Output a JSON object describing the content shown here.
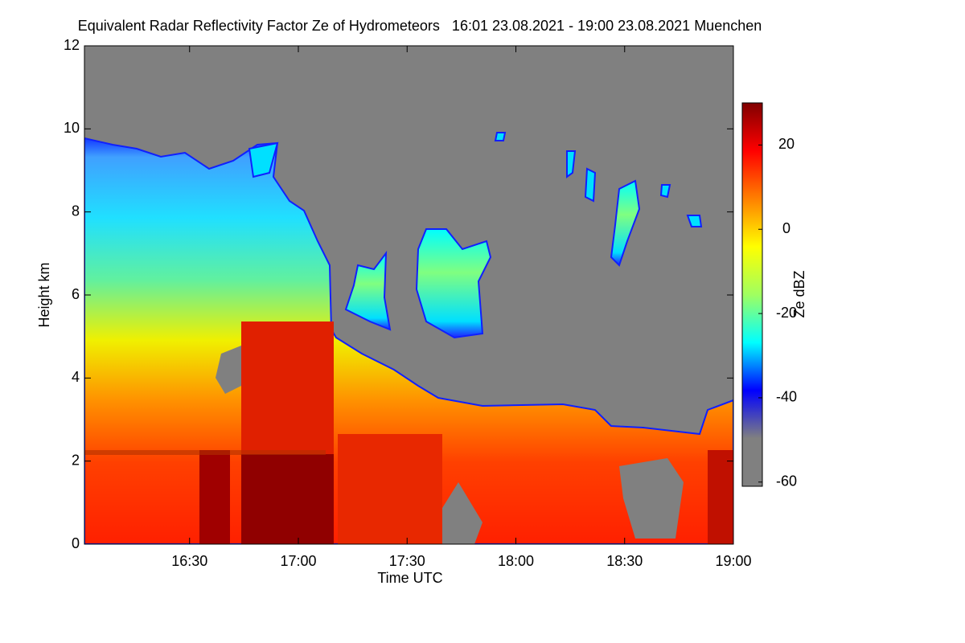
{
  "chart_data": {
    "type": "heatmap",
    "title": "Equivalent Radar Reflectivity Factor Ze of Hydrometeors   16:01 23.08.2021 - 19:00 23.08.2021 Muenchen",
    "x_label": "Time UTC",
    "y_label": "Height km",
    "colorbar_label": "Ze dBZ",
    "xlim": [
      961,
      1140
    ],
    "xticks": [
      {
        "value": 990,
        "label": "16:30"
      },
      {
        "value": 1020,
        "label": "17:00"
      },
      {
        "value": 1050,
        "label": "17:30"
      },
      {
        "value": 1080,
        "label": "18:00"
      },
      {
        "value": 1110,
        "label": "18:30"
      },
      {
        "value": 1140,
        "label": "19:00"
      }
    ],
    "ylim": [
      0,
      12
    ],
    "yticks": [
      0,
      2,
      4,
      6,
      8,
      10,
      12
    ],
    "clim": [
      -61,
      30
    ],
    "cticks": [
      -60,
      -40,
      -20,
      0,
      20
    ],
    "colormap": [
      "#808080",
      "#808080",
      "#0000ff",
      "#00ffff",
      "#a0ff60",
      "#ffff00",
      "#ff8000",
      "#ff0000",
      "#800000"
    ]
  }
}
